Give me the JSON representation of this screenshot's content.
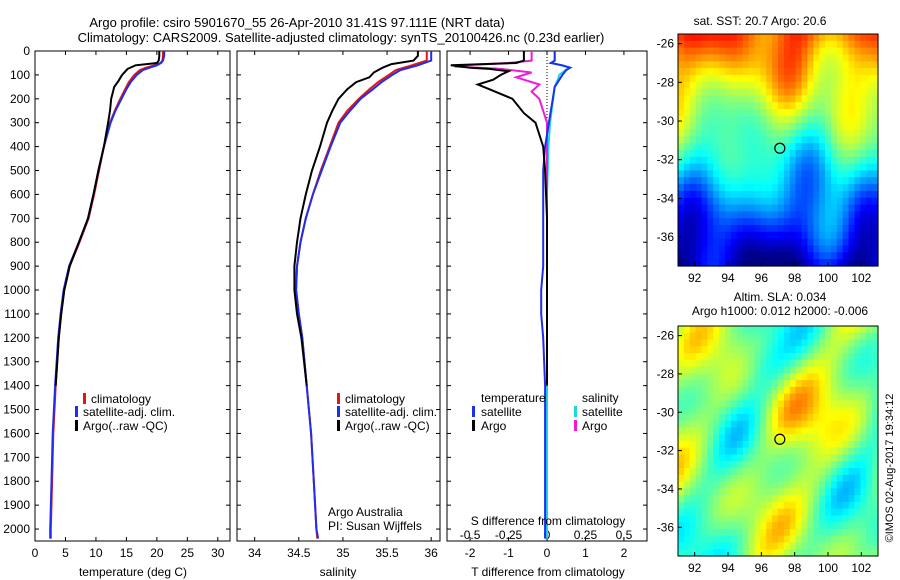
{
  "title_line1": "Argo profile: csiro 5901670_55 26-Apr-2010 31.41S 97.111E (NRT data)",
  "title_line2": "Climatology: CARS2009. Satellite-adjusted climatology: synTS_20100426.nc (0.23d earlier)",
  "footer_stamp": "©IMOS 02-Aug-2017 19:34:12",
  "colors": {
    "climatology": "#e8140f",
    "satellite": "#1d2ef0",
    "argo": "#000000",
    "sat_salinity": "#19d8e6",
    "argo_salinity": "#ee1cd6"
  },
  "chart_data": [
    {
      "type": "line",
      "id": "temperature",
      "xlabel": "temperature (deg C)",
      "xlim": [
        0,
        32
      ],
      "xticks": [
        "0",
        "5",
        "10",
        "15",
        "20",
        "25",
        "30"
      ],
      "ylim": [
        0,
        2050
      ],
      "yticks": [
        "0",
        "100",
        "200",
        "300",
        "400",
        "500",
        "600",
        "700",
        "800",
        "900",
        "1000",
        "1100",
        "1200",
        "1300",
        "1400",
        "1500",
        "1600",
        "1700",
        "1800",
        "1900",
        "2000"
      ],
      "legend": [
        "climatology",
        "satellite-adj. clim.",
        "Argo(..raw -QC)"
      ],
      "series": [
        {
          "name": "climatology",
          "depth": [
            0,
            20,
            40,
            50,
            60,
            70,
            80,
            100,
            130,
            160,
            200,
            250,
            300,
            400,
            500,
            600,
            700,
            800,
            900,
            1000,
            1100,
            1200,
            1400,
            1600,
            1800,
            2000,
            2040
          ],
          "values": [
            21.0,
            21.0,
            20.9,
            20.6,
            19.6,
            18.2,
            17.2,
            16.3,
            15.4,
            14.8,
            14.0,
            13.1,
            12.3,
            11.3,
            10.5,
            9.7,
            8.8,
            7.3,
            5.7,
            4.8,
            4.3,
            3.9,
            3.4,
            3.0,
            2.8,
            2.6,
            2.6
          ]
        },
        {
          "name": "satellite-adj. clim.",
          "depth": [
            0,
            20,
            40,
            50,
            60,
            70,
            80,
            100,
            130,
            160,
            200,
            250,
            300,
            400,
            500,
            600,
            700,
            800,
            900,
            1000,
            1100,
            1200,
            1400,
            1600,
            1800,
            2000,
            2040
          ],
          "values": [
            21.2,
            21.2,
            21.0,
            20.7,
            20.0,
            18.8,
            17.7,
            16.7,
            15.7,
            15.0,
            14.2,
            13.2,
            12.4,
            11.3,
            10.4,
            9.6,
            8.7,
            7.2,
            5.6,
            4.7,
            4.2,
            3.8,
            3.3,
            2.9,
            2.7,
            2.5,
            2.5
          ]
        },
        {
          "name": "Argo(..raw -QC)",
          "depth": [
            0,
            20,
            40,
            50,
            60,
            75,
            100,
            125,
            150,
            200,
            250,
            300,
            400,
            500,
            600,
            700,
            800,
            900,
            1000,
            1100,
            1200,
            1400
          ],
          "values": [
            20.4,
            20.4,
            20.3,
            20.0,
            16.5,
            15.2,
            14.3,
            13.7,
            13.0,
            12.5,
            12.3,
            12.0,
            11.3,
            10.4,
            9.6,
            8.7,
            7.2,
            5.7,
            4.8,
            4.3,
            3.9,
            3.4
          ]
        }
      ]
    },
    {
      "type": "line",
      "id": "salinity",
      "xlabel": "salinity",
      "xlim": [
        33.8,
        36.1
      ],
      "xticks": [
        "34",
        "34.5",
        "35",
        "35.5",
        "36"
      ],
      "ylim": [
        0,
        2050
      ],
      "legend": [
        "climatology",
        "satellite-adj. clim.",
        "Argo(..raw -QC)"
      ],
      "annotation": [
        "Argo Australia",
        "PI: Susan Wijffels"
      ],
      "series": [
        {
          "name": "climatology",
          "depth": [
            0,
            40,
            60,
            80,
            100,
            130,
            160,
            200,
            250,
            300,
            400,
            500,
            600,
            700,
            800,
            900,
            1000,
            1100,
            1200,
            1400,
            1600,
            1800,
            2000,
            2040
          ],
          "values": [
            35.95,
            35.95,
            35.78,
            35.6,
            35.52,
            35.4,
            35.3,
            35.18,
            35.05,
            34.95,
            34.85,
            34.75,
            34.66,
            34.58,
            34.52,
            34.48,
            34.47,
            34.5,
            34.54,
            34.59,
            34.64,
            34.67,
            34.7,
            34.71
          ]
        },
        {
          "name": "satellite-adj. clim.",
          "depth": [
            0,
            40,
            60,
            80,
            100,
            130,
            160,
            200,
            250,
            300,
            400,
            500,
            600,
            700,
            800,
            900,
            1000,
            1100,
            1200,
            1400,
            1600,
            1800,
            2000,
            2040
          ],
          "values": [
            36.0,
            36.0,
            35.85,
            35.65,
            35.56,
            35.44,
            35.34,
            35.2,
            35.08,
            34.97,
            34.86,
            34.76,
            34.66,
            34.58,
            34.52,
            34.48,
            34.47,
            34.5,
            34.54,
            34.59,
            34.64,
            34.67,
            34.7,
            34.72
          ]
        },
        {
          "name": "Argo(..raw -QC)",
          "depth": [
            0,
            20,
            40,
            55,
            70,
            90,
            110,
            130,
            160,
            200,
            250,
            300,
            400,
            500,
            600,
            700,
            800,
            900,
            1000,
            1100,
            1200,
            1400
          ],
          "values": [
            35.85,
            35.85,
            35.8,
            35.55,
            35.45,
            35.35,
            35.3,
            35.15,
            35.05,
            34.95,
            34.88,
            34.82,
            34.74,
            34.65,
            34.58,
            34.52,
            34.48,
            34.45,
            34.45,
            34.48,
            34.53,
            34.59
          ]
        }
      ]
    },
    {
      "type": "line",
      "id": "difference",
      "xlabel": "T difference from climatology",
      "top_label": "S difference from climatology",
      "xlim": [
        -2.6,
        2.6
      ],
      "xticks": [
        "-2",
        "-1",
        "0",
        "1",
        "2"
      ],
      "sticks": [
        "-0.5",
        "-0.25",
        "0",
        "0.25",
        "0.5"
      ],
      "legend_temperature": {
        "title": "temperature",
        "items": [
          "satellite",
          "Argo"
        ]
      },
      "legend_salinity": {
        "title": "salinity",
        "items": [
          "satellite",
          "Argo"
        ]
      },
      "series": [
        {
          "name": "satellite",
          "group": "temperature",
          "depth": [
            0,
            40,
            50,
            60,
            70,
            80,
            100,
            150,
            200,
            300,
            400,
            500,
            700,
            900,
            1000,
            1100,
            1200,
            1400,
            1600,
            1800,
            2000,
            2040
          ],
          "values": [
            0.2,
            0.2,
            0.1,
            0.4,
            0.6,
            0.5,
            0.4,
            0.2,
            0.15,
            0.05,
            -0.05,
            -0.1,
            -0.1,
            -0.1,
            -0.15,
            -0.15,
            -0.1,
            -0.05,
            -0.05,
            -0.05,
            -0.05,
            -0.05
          ]
        },
        {
          "name": "Argo",
          "group": "temperature",
          "depth": [
            0,
            40,
            50,
            60,
            70,
            75,
            85,
            100,
            120,
            140,
            160,
            200,
            260,
            300,
            400,
            500,
            700,
            900,
            1000,
            1100,
            1200,
            1400
          ],
          "values": [
            -0.6,
            -0.6,
            -0.8,
            -2.5,
            -2.0,
            -1.5,
            -1.0,
            -1.2,
            -1.4,
            -1.8,
            -1.5,
            -0.9,
            -0.6,
            -0.3,
            -0.1,
            -0.05,
            0.0,
            0.0,
            0.0,
            0.0,
            0.0,
            0.0
          ]
        },
        {
          "name": "satellite",
          "group": "salinity",
          "depth": [
            0,
            40,
            50,
            60,
            70,
            80,
            100,
            120,
            150,
            200,
            250,
            300,
            400,
            600,
            800,
            1000,
            1200,
            1400,
            1600,
            1800,
            2000,
            2040
          ],
          "values": [
            0.05,
            0.05,
            0.03,
            0.09,
            0.15,
            0.12,
            0.08,
            0.07,
            0.05,
            0.04,
            0.03,
            0.02,
            0.01,
            0.0,
            0.0,
            0.0,
            0.0,
            0.0,
            0.0,
            0.0,
            0.0,
            0.0
          ]
        },
        {
          "name": "Argo",
          "group": "salinity",
          "depth": [
            0,
            40,
            50,
            60,
            65,
            75,
            90,
            110,
            140,
            170,
            200,
            260,
            300,
            400,
            600,
            800,
            1000,
            1200,
            1400
          ],
          "values": [
            -0.1,
            -0.1,
            -0.25,
            -0.55,
            -0.6,
            -0.3,
            -0.1,
            -0.2,
            -0.05,
            -0.1,
            -0.05,
            -0.02,
            0.0,
            0.0,
            0.0,
            0.0,
            0.0,
            0.0,
            0.0
          ]
        }
      ]
    },
    {
      "type": "heatmap",
      "id": "sst_map",
      "title": "sat. SST: 20.7  Argo: 20.6",
      "xticks": [
        "92",
        "94",
        "96",
        "98",
        "100",
        "102"
      ],
      "yticks": [
        "-26",
        "-28",
        "-30",
        "-32",
        "-34",
        "-36"
      ],
      "xlim": [
        91,
        103
      ],
      "ylim": [
        -37.5,
        -25.5
      ],
      "marker": {
        "lon": 97.11,
        "lat": -31.41
      },
      "colormap": "jet"
    },
    {
      "type": "heatmap",
      "id": "sla_map",
      "title_lines": [
        "Altim. SLA: 0.034",
        "Argo h1000: 0.012 h2000: -0.006"
      ],
      "xticks": [
        "92",
        "94",
        "96",
        "98",
        "100",
        "102"
      ],
      "yticks": [
        "-26",
        "-28",
        "-30",
        "-32",
        "-34",
        "-36"
      ],
      "xlim": [
        91,
        103
      ],
      "ylim": [
        -37.5,
        -25.5
      ],
      "marker": {
        "lon": 97.11,
        "lat": -31.41
      },
      "colormap": "jet"
    }
  ]
}
